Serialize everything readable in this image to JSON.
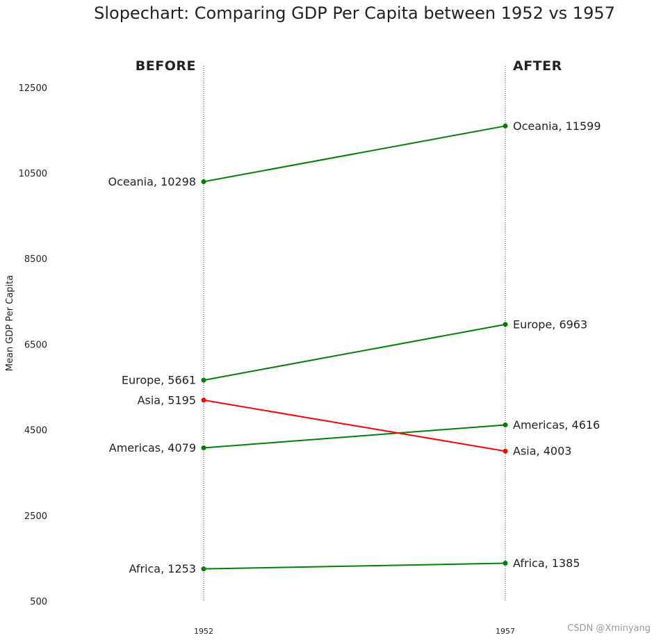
{
  "chart_data": {
    "type": "line",
    "title": "Slopechart: Comparing GDP Per Capita between 1952 vs 1957",
    "ylabel": "Mean GDP Per Capita",
    "xlabel": "",
    "column_headers": [
      "BEFORE",
      "AFTER"
    ],
    "x": [
      "1952",
      "1957"
    ],
    "ylim": [
      500,
      13000
    ],
    "yticks": [
      500,
      2500,
      4500,
      6500,
      8500,
      10500,
      12500
    ],
    "series": [
      {
        "name": "Africa",
        "values": [
          1253,
          1385
        ],
        "color": "#008000"
      },
      {
        "name": "Americas",
        "values": [
          4079,
          4616
        ],
        "color": "#008000"
      },
      {
        "name": "Asia",
        "values": [
          5195,
          4003
        ],
        "color": "#ff0000"
      },
      {
        "name": "Europe",
        "values": [
          5661,
          6963
        ],
        "color": "#008000"
      },
      {
        "name": "Oceania",
        "values": [
          10298,
          11599
        ],
        "color": "#008000"
      }
    ],
    "grid": false,
    "legend": "none"
  },
  "watermark": "CSDN @Xminyang"
}
